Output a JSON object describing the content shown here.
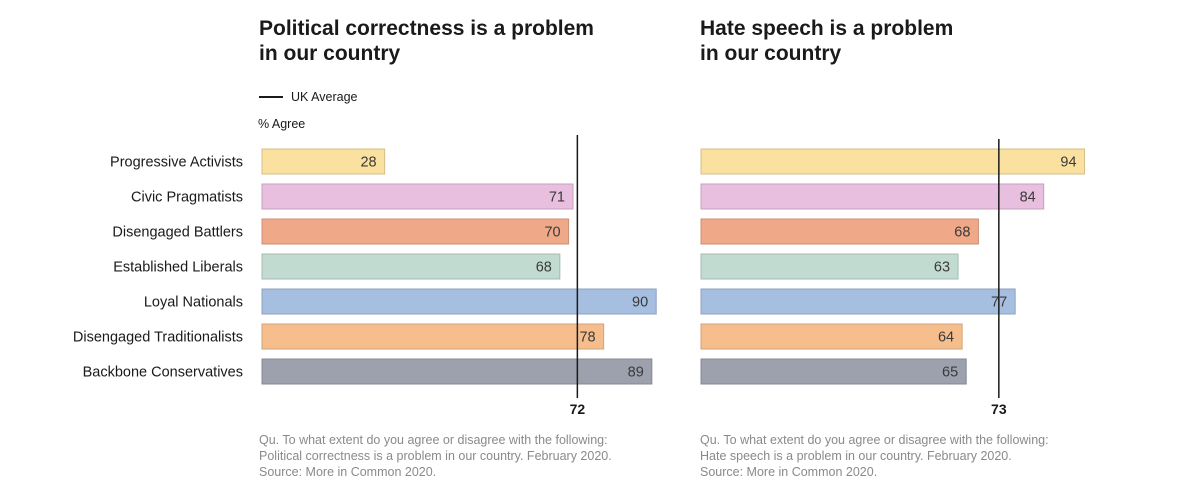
{
  "legend": {
    "label": "UK Average"
  },
  "axis_label": "% Agree",
  "colors": [
    "#fbe1a0",
    "#e8bfdf",
    "#efa988",
    "#c2dbd1",
    "#a6bfe0",
    "#f5be8c",
    "#9da1ad"
  ],
  "chart_data": [
    {
      "type": "bar",
      "title": "Political correctness is a problem\nin our country",
      "categories": [
        "Progressive Activists",
        "Civic Pragmatists",
        "Disengaged Battlers",
        "Established Liberals",
        "Loyal Nationals",
        "Disengaged Traditionalists",
        "Backbone Conservatives"
      ],
      "values": [
        28,
        71,
        70,
        68,
        90,
        78,
        89
      ],
      "average": {
        "label": "UK Average",
        "value": 72
      },
      "ylabel": "% Agree",
      "xlim": [
        0,
        100
      ],
      "source": "Qu. To what extent do you agree or disagree with the following:\nPolitical correctness is a problem in our country.  February 2020.\nSource: More in Common 2020."
    },
    {
      "type": "bar",
      "title": "Hate speech is a problem\nin our country",
      "categories": [
        "Progressive Activists",
        "Civic Pragmatists",
        "Disengaged Battlers",
        "Established Liberals",
        "Loyal Nationals",
        "Disengaged Traditionalists",
        "Backbone Conservatives"
      ],
      "values": [
        94,
        84,
        68,
        63,
        77,
        64,
        65
      ],
      "average": {
        "label": "UK Average",
        "value": 73
      },
      "xlim": [
        0,
        100
      ],
      "source": "Qu. To what extent do you agree or disagree with the following:\nHate speech is a problem in our country.  February 2020.\nSource: More in Common 2020."
    }
  ]
}
